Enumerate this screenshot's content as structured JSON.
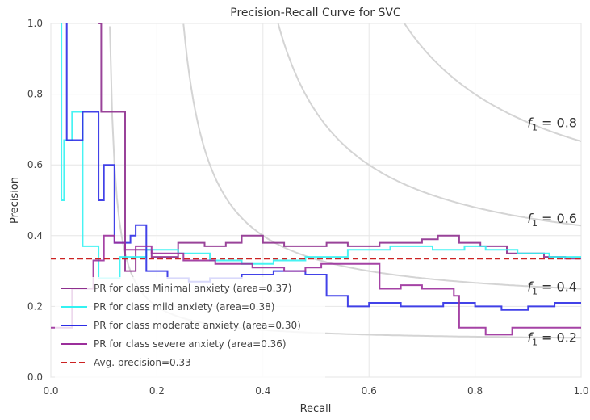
{
  "chart_data": {
    "type": "line",
    "title": "Precision-Recall Curve for SVC",
    "xlabel": "Recall",
    "ylabel": "Precision",
    "xlim": [
      0.0,
      1.0
    ],
    "ylim": [
      0.0,
      1.0
    ],
    "xticks": [
      "0.0",
      "0.2",
      "0.4",
      "0.6",
      "0.8",
      "1.0"
    ],
    "yticks": [
      "0.0",
      "0.2",
      "0.4",
      "0.6",
      "0.8",
      "1.0"
    ],
    "grid": true,
    "legend_position": "lower-left",
    "iso_f1_curves": [
      {
        "f1": 0.2,
        "label_base": "f",
        "label_sub": "1",
        "label_tail": " = 0.2"
      },
      {
        "f1": 0.4,
        "label_base": "f",
        "label_sub": "1",
        "label_tail": " = 0.4"
      },
      {
        "f1": 0.6,
        "label_base": "f",
        "label_sub": "1",
        "label_tail": " = 0.6"
      },
      {
        "f1": 0.8,
        "label_base": "f",
        "label_sub": "1",
        "label_tail": " = 0.8"
      }
    ],
    "avg_precision": {
      "label": "Avg. precision=0.33",
      "value": 0.335,
      "color": "#cc2222"
    },
    "series": [
      {
        "name": "PR for class Minimal anxiety (area=0.37)",
        "color": "#8e2f8e",
        "points": [
          [
            0.09,
            1.0
          ],
          [
            0.095,
            1.0
          ],
          [
            0.095,
            0.75
          ],
          [
            0.14,
            0.75
          ],
          [
            0.14,
            0.3
          ],
          [
            0.16,
            0.3
          ],
          [
            0.16,
            0.36
          ],
          [
            0.19,
            0.36
          ],
          [
            0.19,
            0.34
          ],
          [
            0.24,
            0.34
          ],
          [
            0.24,
            0.38
          ],
          [
            0.29,
            0.38
          ],
          [
            0.29,
            0.37
          ],
          [
            0.33,
            0.37
          ],
          [
            0.33,
            0.38
          ],
          [
            0.36,
            0.38
          ],
          [
            0.36,
            0.4
          ],
          [
            0.4,
            0.4
          ],
          [
            0.4,
            0.38
          ],
          [
            0.44,
            0.38
          ],
          [
            0.44,
            0.37
          ],
          [
            0.52,
            0.37
          ],
          [
            0.52,
            0.38
          ],
          [
            0.56,
            0.38
          ],
          [
            0.56,
            0.37
          ],
          [
            0.62,
            0.37
          ],
          [
            0.62,
            0.38
          ],
          [
            0.7,
            0.38
          ],
          [
            0.7,
            0.39
          ],
          [
            0.73,
            0.39
          ],
          [
            0.73,
            0.4
          ],
          [
            0.77,
            0.4
          ],
          [
            0.77,
            0.38
          ],
          [
            0.81,
            0.38
          ],
          [
            0.81,
            0.37
          ],
          [
            0.86,
            0.37
          ],
          [
            0.86,
            0.35
          ],
          [
            0.93,
            0.35
          ],
          [
            0.93,
            0.34
          ],
          [
            0.97,
            0.34
          ],
          [
            0.97,
            0.335
          ],
          [
            1.0,
            0.335
          ]
        ]
      },
      {
        "name": "PR for class mild anxiety (area=0.38)",
        "color": "#33f2f2",
        "points": [
          [
            0.02,
            1.0
          ],
          [
            0.02,
            0.5
          ],
          [
            0.025,
            0.5
          ],
          [
            0.025,
            0.67
          ],
          [
            0.04,
            0.67
          ],
          [
            0.04,
            0.75
          ],
          [
            0.06,
            0.75
          ],
          [
            0.06,
            0.37
          ],
          [
            0.09,
            0.37
          ],
          [
            0.09,
            0.28
          ],
          [
            0.13,
            0.28
          ],
          [
            0.13,
            0.34
          ],
          [
            0.18,
            0.34
          ],
          [
            0.18,
            0.36
          ],
          [
            0.24,
            0.36
          ],
          [
            0.24,
            0.35
          ],
          [
            0.3,
            0.35
          ],
          [
            0.3,
            0.33
          ],
          [
            0.36,
            0.33
          ],
          [
            0.36,
            0.32
          ],
          [
            0.42,
            0.32
          ],
          [
            0.42,
            0.33
          ],
          [
            0.48,
            0.33
          ],
          [
            0.48,
            0.34
          ],
          [
            0.56,
            0.34
          ],
          [
            0.56,
            0.36
          ],
          [
            0.64,
            0.36
          ],
          [
            0.64,
            0.37
          ],
          [
            0.72,
            0.37
          ],
          [
            0.72,
            0.36
          ],
          [
            0.78,
            0.36
          ],
          [
            0.78,
            0.37
          ],
          [
            0.82,
            0.37
          ],
          [
            0.82,
            0.36
          ],
          [
            0.88,
            0.36
          ],
          [
            0.88,
            0.35
          ],
          [
            0.94,
            0.35
          ],
          [
            0.94,
            0.34
          ],
          [
            1.0,
            0.34
          ]
        ]
      },
      {
        "name": "PR for class moderate anxiety (area=0.30)",
        "color": "#2d2de6",
        "points": [
          [
            0.03,
            1.0
          ],
          [
            0.03,
            0.67
          ],
          [
            0.06,
            0.67
          ],
          [
            0.06,
            0.75
          ],
          [
            0.09,
            0.75
          ],
          [
            0.09,
            0.5
          ],
          [
            0.1,
            0.5
          ],
          [
            0.1,
            0.6
          ],
          [
            0.12,
            0.6
          ],
          [
            0.12,
            0.38
          ],
          [
            0.15,
            0.38
          ],
          [
            0.15,
            0.4
          ],
          [
            0.16,
            0.4
          ],
          [
            0.16,
            0.43
          ],
          [
            0.18,
            0.43
          ],
          [
            0.18,
            0.3
          ],
          [
            0.22,
            0.3
          ],
          [
            0.22,
            0.28
          ],
          [
            0.26,
            0.28
          ],
          [
            0.26,
            0.27
          ],
          [
            0.3,
            0.27
          ],
          [
            0.3,
            0.28
          ],
          [
            0.36,
            0.28
          ],
          [
            0.36,
            0.29
          ],
          [
            0.42,
            0.29
          ],
          [
            0.42,
            0.3
          ],
          [
            0.48,
            0.3
          ],
          [
            0.48,
            0.29
          ],
          [
            0.52,
            0.29
          ],
          [
            0.52,
            0.23
          ],
          [
            0.56,
            0.23
          ],
          [
            0.56,
            0.2
          ],
          [
            0.6,
            0.2
          ],
          [
            0.6,
            0.21
          ],
          [
            0.66,
            0.21
          ],
          [
            0.66,
            0.2
          ],
          [
            0.74,
            0.2
          ],
          [
            0.74,
            0.21
          ],
          [
            0.8,
            0.21
          ],
          [
            0.8,
            0.2
          ],
          [
            0.85,
            0.2
          ],
          [
            0.85,
            0.19
          ],
          [
            0.9,
            0.19
          ],
          [
            0.9,
            0.2
          ],
          [
            0.95,
            0.2
          ],
          [
            0.95,
            0.21
          ],
          [
            1.0,
            0.21
          ]
        ]
      },
      {
        "name": "PR for class severe anxiety (area=0.36)",
        "color": "#9b2f9b",
        "points": [
          [
            0.0,
            0.14
          ],
          [
            0.04,
            0.14
          ],
          [
            0.04,
            0.25
          ],
          [
            0.08,
            0.25
          ],
          [
            0.08,
            0.33
          ],
          [
            0.1,
            0.33
          ],
          [
            0.1,
            0.4
          ],
          [
            0.12,
            0.4
          ],
          [
            0.12,
            0.38
          ],
          [
            0.14,
            0.38
          ],
          [
            0.14,
            0.36
          ],
          [
            0.16,
            0.36
          ],
          [
            0.16,
            0.37
          ],
          [
            0.19,
            0.37
          ],
          [
            0.19,
            0.35
          ],
          [
            0.25,
            0.35
          ],
          [
            0.25,
            0.33
          ],
          [
            0.31,
            0.33
          ],
          [
            0.31,
            0.32
          ],
          [
            0.38,
            0.32
          ],
          [
            0.38,
            0.31
          ],
          [
            0.44,
            0.31
          ],
          [
            0.44,
            0.3
          ],
          [
            0.48,
            0.3
          ],
          [
            0.48,
            0.31
          ],
          [
            0.51,
            0.31
          ],
          [
            0.51,
            0.32
          ],
          [
            0.62,
            0.32
          ],
          [
            0.62,
            0.25
          ],
          [
            0.66,
            0.25
          ],
          [
            0.66,
            0.26
          ],
          [
            0.7,
            0.26
          ],
          [
            0.7,
            0.25
          ],
          [
            0.76,
            0.25
          ],
          [
            0.76,
            0.23
          ],
          [
            0.77,
            0.23
          ],
          [
            0.77,
            0.14
          ],
          [
            0.82,
            0.14
          ],
          [
            0.82,
            0.12
          ],
          [
            0.87,
            0.12
          ],
          [
            0.87,
            0.14
          ],
          [
            1.0,
            0.14
          ]
        ]
      }
    ]
  }
}
